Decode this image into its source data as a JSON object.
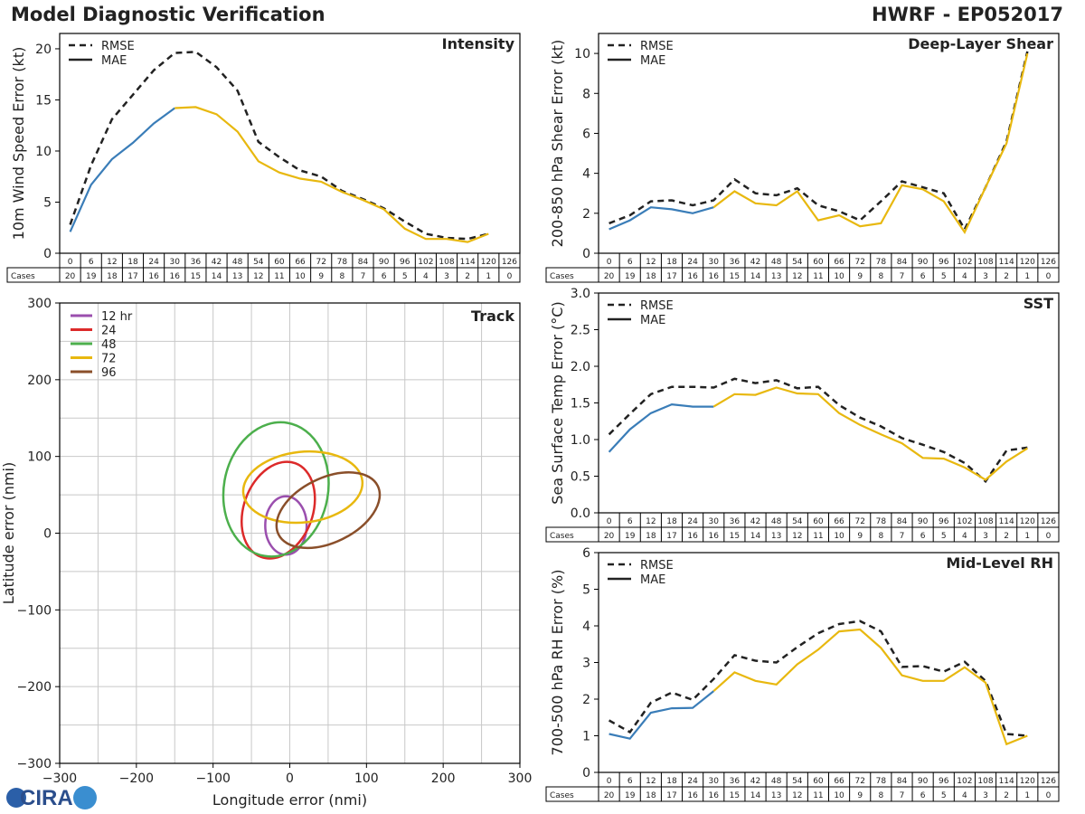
{
  "header": {
    "title": "Model Diagnostic Verification",
    "storm": "HWRF - EP052017"
  },
  "logo": {
    "text": "CIRA"
  },
  "colors": {
    "early": "#3a7db8",
    "late": "#e8b80f",
    "rmse": "#222222",
    "grid": "#c8c8c8",
    "text": "#222222"
  },
  "table": {
    "cases_label": "Cases",
    "hours": [
      "0",
      "6",
      "12",
      "18",
      "24",
      "30",
      "36",
      "42",
      "48",
      "54",
      "60",
      "66",
      "72",
      "78",
      "84",
      "90",
      "96",
      "102",
      "108",
      "114",
      "120",
      "126"
    ],
    "cases": [
      "20",
      "19",
      "18",
      "17",
      "16",
      "16",
      "15",
      "14",
      "13",
      "12",
      "11",
      "10",
      "9",
      "8",
      "7",
      "6",
      "5",
      "4",
      "3",
      "2",
      "1",
      "0"
    ]
  },
  "chart_data": [
    {
      "id": "intensity",
      "type": "line",
      "title": "Intensity",
      "ylabel": "10m Wind Speed Error (kt)",
      "ylim": [
        0,
        21.5
      ],
      "yticks": [
        0,
        5,
        10,
        15,
        20
      ],
      "ytick_labels": [
        "0",
        "5",
        "10",
        "15",
        "20"
      ],
      "legend": [
        "RMSE",
        "MAE"
      ],
      "legend_position": "top-left",
      "x": [
        0,
        6,
        12,
        18,
        24,
        30,
        36,
        42,
        48,
        54,
        60,
        66,
        72,
        78,
        84,
        90,
        96,
        102,
        108,
        114,
        120
      ],
      "rmse": [
        2.8,
        8.6,
        13.1,
        15.5,
        17.9,
        19.6,
        19.7,
        18.2,
        15.9,
        10.9,
        9.4,
        8.1,
        7.5,
        6.1,
        5.3,
        4.4,
        3.1,
        1.9,
        1.5,
        1.4,
        1.9
      ],
      "mae": [
        2.1,
        6.7,
        9.2,
        10.8,
        12.7,
        14.2,
        14.3,
        13.6,
        11.9,
        9.0,
        7.9,
        7.3,
        7.0,
        6.0,
        5.2,
        4.3,
        2.4,
        1.4,
        1.4,
        1.1,
        1.9
      ]
    },
    {
      "id": "shear",
      "type": "line",
      "title": "Deep-Layer Shear",
      "ylabel": "200-850 hPa Shear Error (kt)",
      "ylim": [
        0,
        11
      ],
      "yticks": [
        0,
        2,
        4,
        6,
        8,
        10
      ],
      "ytick_labels": [
        "0",
        "2",
        "4",
        "6",
        "8",
        "10"
      ],
      "legend": [
        "RMSE",
        "MAE"
      ],
      "legend_position": "top-left",
      "x": [
        0,
        6,
        12,
        18,
        24,
        30,
        36,
        42,
        48,
        54,
        60,
        66,
        72,
        78,
        84,
        90,
        96,
        102,
        108,
        114,
        120
      ],
      "rmse": [
        1.5,
        1.9,
        2.6,
        2.65,
        2.4,
        2.65,
        3.7,
        3.0,
        2.9,
        3.25,
        2.4,
        2.1,
        1.65,
        2.6,
        3.6,
        3.3,
        3.0,
        1.2,
        3.3,
        5.6,
        10.1
      ],
      "mae": [
        1.2,
        1.65,
        2.3,
        2.2,
        2.0,
        2.3,
        3.1,
        2.5,
        2.4,
        3.1,
        1.65,
        1.9,
        1.35,
        1.5,
        3.4,
        3.2,
        2.6,
        1.05,
        3.3,
        5.5,
        10.0
      ]
    },
    {
      "id": "track",
      "type": "scatter",
      "title": "Track",
      "xlabel": "Longitude error (nmi)",
      "ylabel": "Latitude error (nmi)",
      "xlim": [
        -300,
        300
      ],
      "ylim": [
        -300,
        300
      ],
      "xticks": [
        -300,
        -200,
        -100,
        0,
        100,
        200,
        300
      ],
      "xtick_labels": [
        "−300",
        "−200",
        "−100",
        "0",
        "100",
        "200",
        "300"
      ],
      "yticks": [
        -300,
        -200,
        -100,
        0,
        100,
        200,
        300
      ],
      "ytick_labels": [
        "−300",
        "−200",
        "−100",
        "0",
        "100",
        "200",
        "300"
      ],
      "legend_position": "top-left",
      "ellipses": [
        {
          "label": "12 hr",
          "color": "#9b4fae",
          "cx": -5,
          "cy": 10,
          "rx": 27,
          "ry": 38,
          "angle": 0
        },
        {
          "label": "24",
          "color": "#dc2a2a",
          "cx": -15,
          "cy": 30,
          "rx": 45,
          "ry": 65,
          "angle": 20
        },
        {
          "label": "48",
          "color": "#4caf4c",
          "cx": -18,
          "cy": 57,
          "rx": 68,
          "ry": 88,
          "angle": 10
        },
        {
          "label": "72",
          "color": "#e8b80f",
          "cx": 17,
          "cy": 60,
          "rx": 78,
          "ry": 46,
          "angle": -6
        },
        {
          "label": "96",
          "color": "#8a4f2a",
          "cx": 50,
          "cy": 30,
          "rx": 72,
          "ry": 42,
          "angle": -26
        }
      ]
    },
    {
      "id": "sst",
      "type": "line",
      "title": "SST",
      "ylabel": "Sea Surface Temp Error (°C)",
      "ylim": [
        0,
        3.0
      ],
      "yticks": [
        0,
        0.5,
        1.0,
        1.5,
        2.0,
        2.5,
        3.0
      ],
      "ytick_labels": [
        "0.0",
        "0.5",
        "1.0",
        "1.5",
        "2.0",
        "2.5",
        "3.0"
      ],
      "legend": [
        "RMSE",
        "MAE"
      ],
      "legend_position": "top-left",
      "x": [
        0,
        6,
        12,
        18,
        24,
        30,
        36,
        42,
        48,
        54,
        60,
        66,
        72,
        78,
        84,
        90,
        96,
        102,
        108,
        114,
        120
      ],
      "rmse": [
        1.07,
        1.35,
        1.62,
        1.72,
        1.72,
        1.71,
        1.83,
        1.77,
        1.81,
        1.7,
        1.72,
        1.47,
        1.3,
        1.18,
        1.02,
        0.93,
        0.83,
        0.68,
        0.43,
        0.85,
        0.89
      ],
      "mae": [
        0.83,
        1.14,
        1.36,
        1.48,
        1.45,
        1.45,
        1.62,
        1.61,
        1.71,
        1.63,
        1.62,
        1.36,
        1.2,
        1.07,
        0.95,
        0.75,
        0.74,
        0.62,
        0.45,
        0.7,
        0.88
      ]
    },
    {
      "id": "rh",
      "type": "line",
      "title": "Mid-Level RH",
      "ylabel": "700-500 hPa RH Error (%)",
      "ylim": [
        0,
        6
      ],
      "yticks": [
        0,
        1,
        2,
        3,
        4,
        5,
        6
      ],
      "ytick_labels": [
        "0",
        "1",
        "2",
        "3",
        "4",
        "5",
        "6"
      ],
      "legend": [
        "RMSE",
        "MAE"
      ],
      "legend_position": "top-left",
      "x": [
        0,
        6,
        12,
        18,
        24,
        30,
        36,
        42,
        48,
        54,
        60,
        66,
        72,
        78,
        84,
        90,
        96,
        102,
        108,
        114,
        120
      ],
      "rmse": [
        1.42,
        1.1,
        1.9,
        2.18,
        1.98,
        2.55,
        3.2,
        3.05,
        3.0,
        3.42,
        3.8,
        4.05,
        4.13,
        3.85,
        2.88,
        2.9,
        2.75,
        3.02,
        2.5,
        1.05,
        1.0
      ],
      "mae": [
        1.05,
        0.92,
        1.63,
        1.75,
        1.76,
        2.22,
        2.73,
        2.5,
        2.4,
        2.95,
        3.35,
        3.85,
        3.9,
        3.4,
        2.65,
        2.5,
        2.5,
        2.87,
        2.45,
        0.77,
        1.0
      ]
    }
  ]
}
